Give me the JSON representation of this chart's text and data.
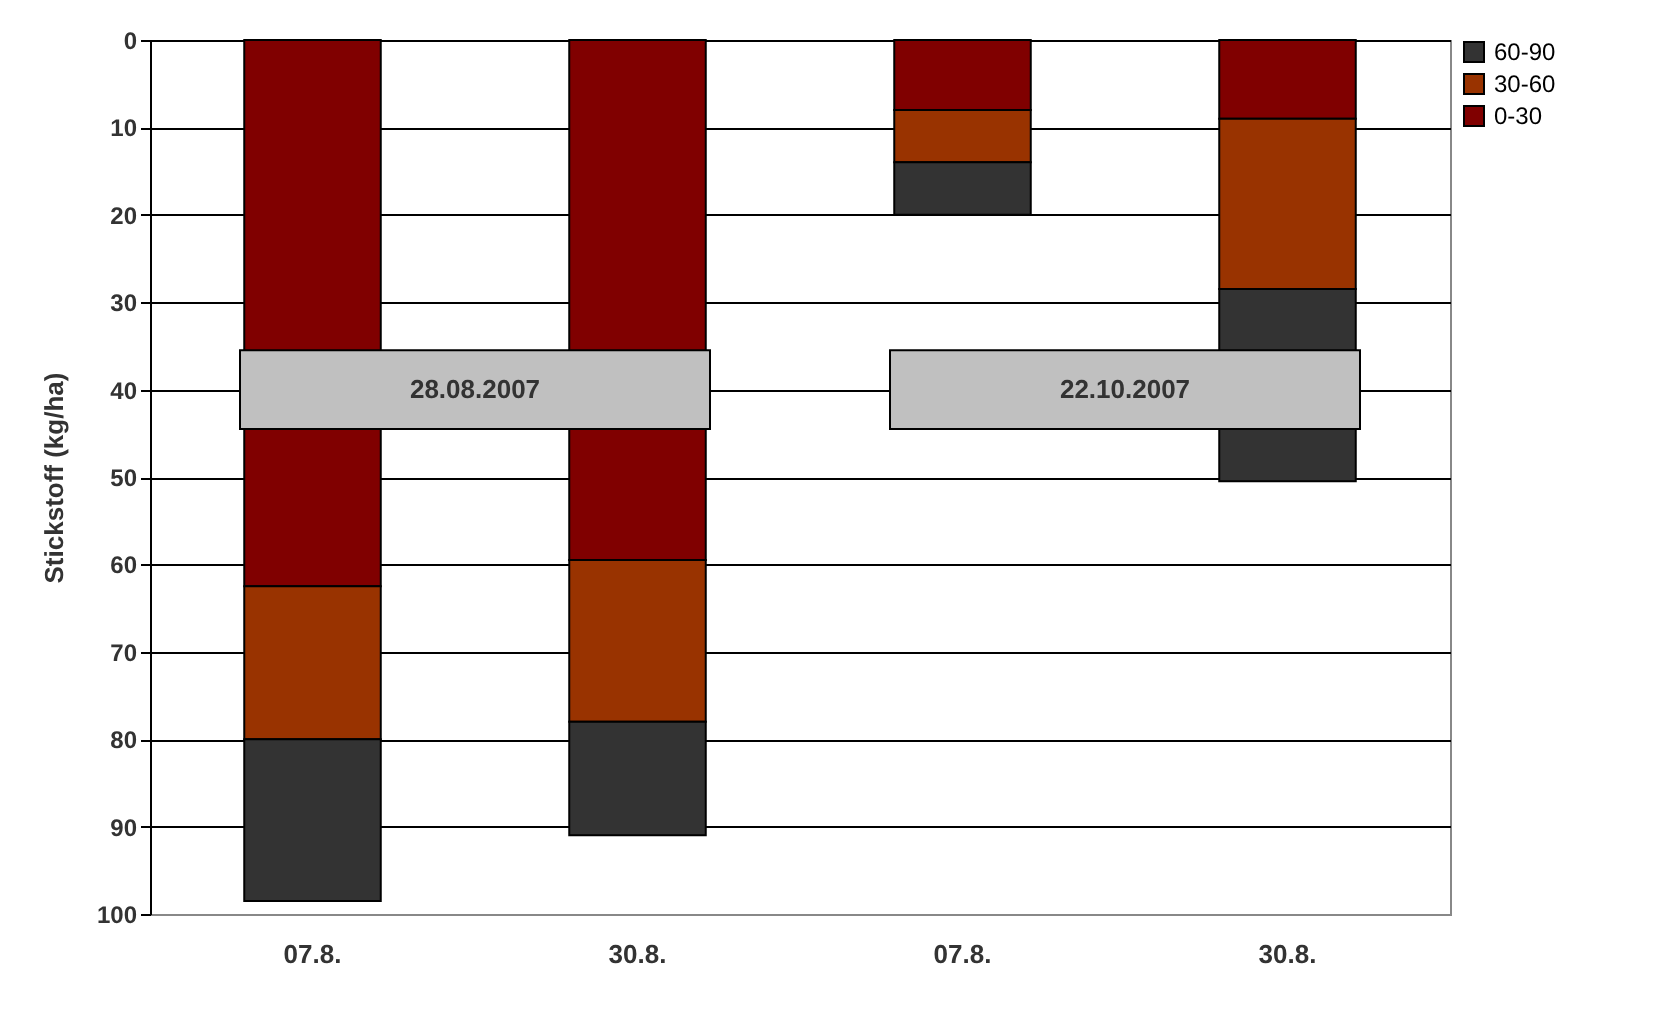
{
  "chart_data": {
    "type": "bar",
    "stacked": true,
    "ylabel": "Stickstoff (kg/ha)",
    "categories": [
      "07.8.",
      "30.8.",
      "07.8.",
      "30.8."
    ],
    "series": [
      {
        "name": "0-30",
        "color": "#800000",
        "values": [
          62.5,
          59.5,
          8,
          9
        ]
      },
      {
        "name": "30-60",
        "color": "#993300",
        "values": [
          17.5,
          18.5,
          6,
          19.5
        ]
      },
      {
        "name": "60-90",
        "color": "#333333",
        "values": [
          18.5,
          13,
          6,
          22
        ]
      }
    ],
    "ylim": [
      100,
      0
    ],
    "yticks": [
      0,
      10,
      20,
      30,
      40,
      50,
      60,
      70,
      80,
      90,
      100
    ],
    "grid": "y",
    "legend": "right",
    "annotations": [
      "28.08.2007",
      "22.10.2007"
    ]
  }
}
